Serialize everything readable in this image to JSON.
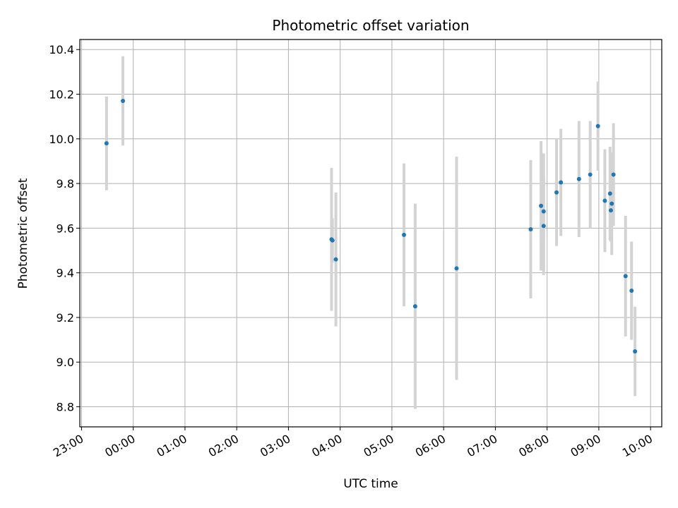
{
  "chart_data": {
    "type": "scatter",
    "title": "Photometric offset variation",
    "xlabel": "UTC time",
    "ylabel": "Photometric offset",
    "grid": true,
    "xlim": [
      "22:58",
      "10:13"
    ],
    "ylim": [
      8.71,
      10.445
    ],
    "x_ticks": [
      "23:00",
      "00:00",
      "01:00",
      "02:00",
      "03:00",
      "04:00",
      "05:00",
      "06:00",
      "07:00",
      "08:00",
      "09:00",
      "10:00"
    ],
    "y_ticks": [
      8.8,
      9.0,
      9.2,
      9.4,
      9.6,
      9.8,
      10.0,
      10.2,
      10.4
    ],
    "y_tick_labels": [
      "8.8",
      "9.0",
      "9.2",
      "9.4",
      "9.6",
      "9.8",
      "10.0",
      "10.2",
      "10.4"
    ],
    "point_color": "#1f77b4",
    "errorbar_color": "#d3d3d3",
    "points": [
      {
        "t": "23:29",
        "y": 9.98,
        "err": 0.21
      },
      {
        "t": "23:48",
        "y": 10.17,
        "err": 0.2
      },
      {
        "t": "03:50",
        "y": 9.55,
        "err": 0.32
      },
      {
        "t": "03:51",
        "y": 9.545,
        "err": 0.1
      },
      {
        "t": "03:55",
        "y": 9.46,
        "err": 0.3
      },
      {
        "t": "05:14",
        "y": 9.57,
        "err": 0.32
      },
      {
        "t": "05:27",
        "y": 9.25,
        "err": 0.46
      },
      {
        "t": "06:15",
        "y": 9.42,
        "err": 0.5
      },
      {
        "t": "07:41",
        "y": 9.595,
        "err": 0.31
      },
      {
        "t": "07:53",
        "y": 9.7,
        "err": 0.29
      },
      {
        "t": "07:56",
        "y": 9.61,
        "err": 0.22
      },
      {
        "t": "07:56",
        "y": 9.675,
        "err": 0.26
      },
      {
        "t": "08:11",
        "y": 9.76,
        "err": 0.24
      },
      {
        "t": "08:16",
        "y": 9.805,
        "err": 0.24
      },
      {
        "t": "08:37",
        "y": 9.82,
        "err": 0.26
      },
      {
        "t": "08:50",
        "y": 9.84,
        "err": 0.24
      },
      {
        "t": "08:59",
        "y": 10.057,
        "err": 0.2
      },
      {
        "t": "09:07",
        "y": 9.723,
        "err": 0.23
      },
      {
        "t": "09:13",
        "y": 9.755,
        "err": 0.21
      },
      {
        "t": "09:14",
        "y": 9.68,
        "err": 0.14
      },
      {
        "t": "09:15",
        "y": 9.71,
        "err": 0.23
      },
      {
        "t": "09:17",
        "y": 9.84,
        "err": 0.23
      },
      {
        "t": "09:31",
        "y": 9.385,
        "err": 0.27
      },
      {
        "t": "09:38",
        "y": 9.32,
        "err": 0.22
      },
      {
        "t": "09:42",
        "y": 9.048,
        "err": 0.2
      }
    ]
  }
}
